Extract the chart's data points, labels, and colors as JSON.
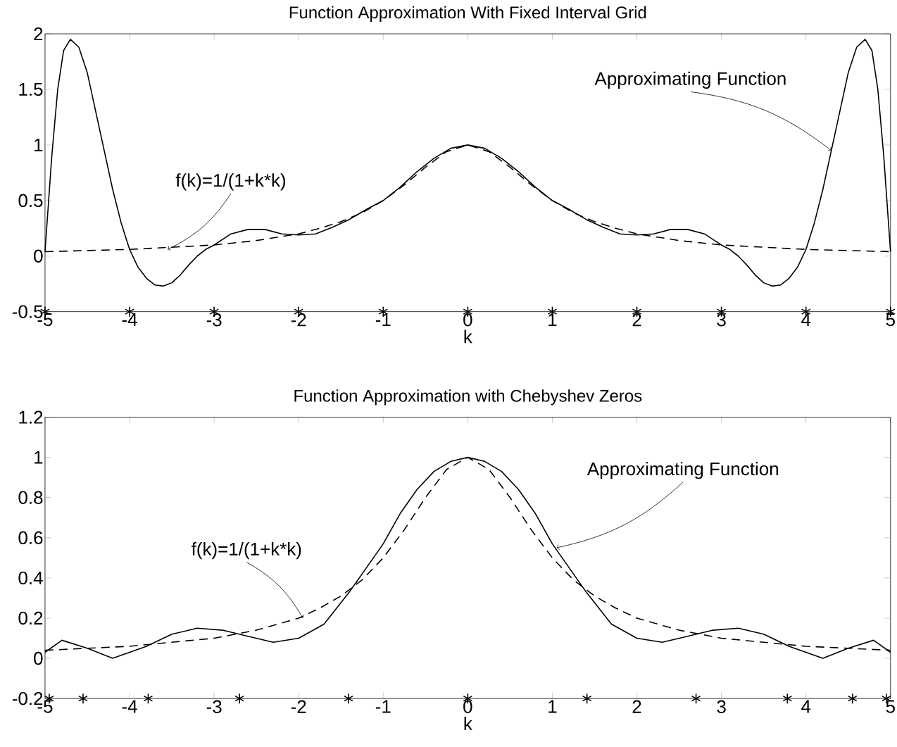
{
  "chart_data": [
    {
      "type": "line",
      "title": "Function Approximation With Fixed Interval Grid",
      "xlabel": "k",
      "xlim": [
        -5,
        5
      ],
      "xticks": [
        -5,
        -4,
        -3,
        -2,
        -1,
        0,
        1,
        2,
        3,
        4,
        5
      ],
      "ylim": [
        -0.5,
        2
      ],
      "yticks": [
        -0.5,
        0,
        0.5,
        1,
        1.5,
        2
      ],
      "series": [
        {
          "line_style": "solid",
          "color": "#000000",
          "x": [
            -5,
            -4.92,
            -4.85,
            -4.78,
            -4.7,
            -4.6,
            -4.5,
            -4.4,
            -4.3,
            -4.2,
            -4.1,
            -4,
            -3.9,
            -3.8,
            -3.7,
            -3.6,
            -3.5,
            -3.4,
            -3.3,
            -3.2,
            -3.1,
            -3,
            -2.8,
            -2.6,
            -2.4,
            -2.2,
            -2,
            -1.8,
            -1.6,
            -1.4,
            -1.2,
            -1,
            -0.8,
            -0.6,
            -0.4,
            -0.2,
            0,
            0.2,
            0.4,
            0.6,
            0.8,
            1,
            1.2,
            1.4,
            1.6,
            1.8,
            2,
            2.2,
            2.4,
            2.6,
            2.8,
            3,
            3.1,
            3.2,
            3.3,
            3.4,
            3.5,
            3.6,
            3.7,
            3.8,
            3.9,
            4,
            4.1,
            4.2,
            4.3,
            4.4,
            4.5,
            4.6,
            4.7,
            4.78,
            4.85,
            4.92,
            5
          ],
          "values": [
            0.04,
            0.9,
            1.5,
            1.85,
            1.95,
            1.88,
            1.65,
            1.3,
            0.95,
            0.6,
            0.3,
            0.06,
            -0.1,
            -0.2,
            -0.26,
            -0.27,
            -0.24,
            -0.17,
            -0.08,
            0,
            0.06,
            0.1,
            0.2,
            0.24,
            0.24,
            0.2,
            0.19,
            0.2,
            0.26,
            0.33,
            0.42,
            0.5,
            0.62,
            0.76,
            0.88,
            0.97,
            1,
            0.97,
            0.88,
            0.76,
            0.62,
            0.5,
            0.42,
            0.33,
            0.26,
            0.2,
            0.19,
            0.2,
            0.24,
            0.24,
            0.2,
            0.1,
            0.06,
            0,
            -0.08,
            -0.17,
            -0.24,
            -0.27,
            -0.26,
            -0.2,
            -0.1,
            0.06,
            0.3,
            0.6,
            0.95,
            1.3,
            1.65,
            1.88,
            1.95,
            1.85,
            1.5,
            0.9,
            0.04
          ]
        },
        {
          "type": "line",
          "line_style": "dashed",
          "color": "#000000",
          "x": [
            -5,
            -4.5,
            -4,
            -3.5,
            -3,
            -2.5,
            -2,
            -1.75,
            -1.5,
            -1.25,
            -1,
            -0.75,
            -0.5,
            -0.25,
            0,
            0.25,
            0.5,
            0.75,
            1,
            1.25,
            1.5,
            1.75,
            2,
            2.5,
            3,
            3.5,
            4,
            4.5,
            5
          ],
          "values": [
            0.04,
            0.05,
            0.06,
            0.08,
            0.1,
            0.14,
            0.2,
            0.25,
            0.31,
            0.39,
            0.5,
            0.64,
            0.8,
            0.94,
            1,
            0.94,
            0.8,
            0.64,
            0.5,
            0.39,
            0.31,
            0.25,
            0.2,
            0.14,
            0.1,
            0.08,
            0.06,
            0.05,
            0.04
          ]
        },
        {
          "type": "scatter",
          "marker": "cross",
          "color": "#000000",
          "x": [
            -5,
            -4,
            -3,
            -2,
            -1,
            0,
            1,
            2,
            3,
            4,
            5
          ],
          "values": [
            -0.5,
            -0.5,
            -0.5,
            -0.5,
            -0.5,
            -0.5,
            -0.5,
            -0.5,
            -0.5,
            -0.5,
            -0.5
          ]
        }
      ],
      "annotations": [
        {
          "text": "Approximating Function",
          "x": 4.3,
          "y": 0.95
        },
        {
          "text": "f(k)=1/(1+k*k)",
          "x": -3.55,
          "y": 0.06
        }
      ]
    },
    {
      "type": "line",
      "title": "Function Approximation with Chebyshev Zeros",
      "xlabel": "k",
      "xlim": [
        -5,
        5
      ],
      "xticks": [
        -5,
        -4,
        -3,
        -2,
        -1,
        0,
        1,
        2,
        3,
        4,
        5
      ],
      "ylim": [
        -0.2,
        1.2
      ],
      "yticks": [
        -0.2,
        0,
        0.2,
        0.4,
        0.6,
        0.8,
        1,
        1.2
      ],
      "series": [
        {
          "line_style": "solid",
          "color": "#000000",
          "x": [
            -5,
            -4.8,
            -4.5,
            -4.2,
            -3.8,
            -3.5,
            -3.2,
            -2.9,
            -2.6,
            -2.3,
            -2,
            -1.7,
            -1.4,
            -1.2,
            -1,
            -0.8,
            -0.6,
            -0.4,
            -0.2,
            0,
            0.2,
            0.4,
            0.6,
            0.8,
            1,
            1.2,
            1.4,
            1.7,
            2,
            2.3,
            2.6,
            2.9,
            3.2,
            3.5,
            3.8,
            4.2,
            4.5,
            4.8,
            5
          ],
          "values": [
            0.03,
            0.09,
            0.05,
            0,
            0.06,
            0.12,
            0.15,
            0.14,
            0.11,
            0.08,
            0.1,
            0.17,
            0.33,
            0.45,
            0.57,
            0.72,
            0.84,
            0.93,
            0.98,
            1,
            0.98,
            0.93,
            0.84,
            0.72,
            0.57,
            0.45,
            0.33,
            0.17,
            0.1,
            0.08,
            0.11,
            0.14,
            0.15,
            0.12,
            0.06,
            0,
            0.05,
            0.09,
            0.03
          ]
        },
        {
          "type": "line",
          "line_style": "dashed",
          "color": "#000000",
          "x": [
            -5,
            -4.5,
            -4,
            -3.5,
            -3,
            -2.5,
            -2,
            -1.75,
            -1.5,
            -1.25,
            -1,
            -0.75,
            -0.5,
            -0.25,
            0,
            0.25,
            0.5,
            0.75,
            1,
            1.25,
            1.5,
            1.75,
            2,
            2.5,
            3,
            3.5,
            4,
            4.5,
            5
          ],
          "values": [
            0.04,
            0.05,
            0.06,
            0.08,
            0.1,
            0.14,
            0.2,
            0.25,
            0.31,
            0.39,
            0.5,
            0.64,
            0.8,
            0.94,
            1,
            0.94,
            0.8,
            0.64,
            0.5,
            0.39,
            0.31,
            0.25,
            0.2,
            0.14,
            0.1,
            0.08,
            0.06,
            0.05,
            0.04
          ]
        },
        {
          "type": "scatter",
          "marker": "cross",
          "color": "#000000",
          "x": [
            -4.95,
            -4.55,
            -3.78,
            -2.7,
            -1.41,
            0,
            1.41,
            2.7,
            3.78,
            4.55,
            4.95
          ],
          "values": [
            -0.2,
            -0.2,
            -0.2,
            -0.2,
            -0.2,
            -0.2,
            -0.2,
            -0.2,
            -0.2,
            -0.2,
            -0.2
          ]
        }
      ],
      "annotations": [
        {
          "text": "Approximating Function",
          "x": 1.05,
          "y": 0.55
        },
        {
          "text": "f(k)=1/(1+k*k)",
          "x": -1.95,
          "y": 0.2
        }
      ]
    }
  ]
}
